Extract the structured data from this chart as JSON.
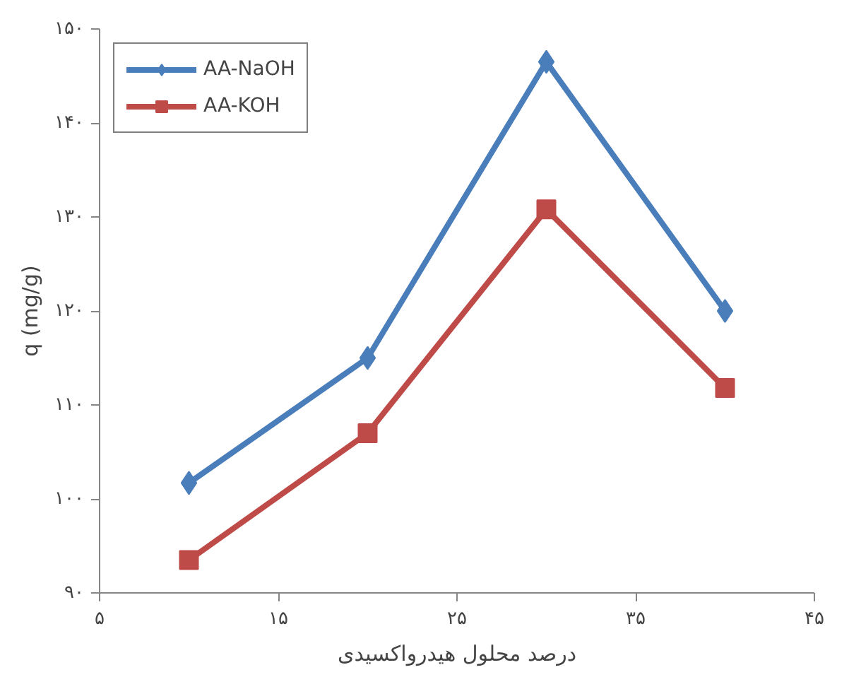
{
  "chart_data": {
    "type": "line",
    "xlabel": "درصد محلول هیدرواکسیدی",
    "ylabel": "q (mg/g)",
    "x": [
      10,
      20,
      30,
      40
    ],
    "series": [
      {
        "name": "AA-NaOH",
        "color": "#4a7ebb",
        "marker": "diamond",
        "values": [
          101.7,
          115,
          146.5,
          120
        ]
      },
      {
        "name": "AA-KOH",
        "color": "#be4b48",
        "marker": "square",
        "values": [
          93.5,
          107,
          130.8,
          111.8
        ]
      }
    ],
    "xlim": [
      5,
      45
    ],
    "ylim": [
      90,
      150
    ],
    "xticks": [
      {
        "value": 5,
        "label": "۵"
      },
      {
        "value": 15,
        "label": "۱۵"
      },
      {
        "value": 25,
        "label": "۲۵"
      },
      {
        "value": 35,
        "label": "۳۵"
      },
      {
        "value": 45,
        "label": "۴۵"
      }
    ],
    "yticks": [
      {
        "value": 90,
        "label": "۹۰"
      },
      {
        "value": 100,
        "label": "۱۰۰"
      },
      {
        "value": 110,
        "label": "۱۱۰"
      },
      {
        "value": 120,
        "label": "۱۲۰"
      },
      {
        "value": 130,
        "label": "۱۳۰"
      },
      {
        "value": 140,
        "label": "۱۴۰"
      },
      {
        "value": 150,
        "label": "۱۵۰"
      }
    ],
    "legend": "top left",
    "grid": false,
    "line_style": "solid"
  }
}
